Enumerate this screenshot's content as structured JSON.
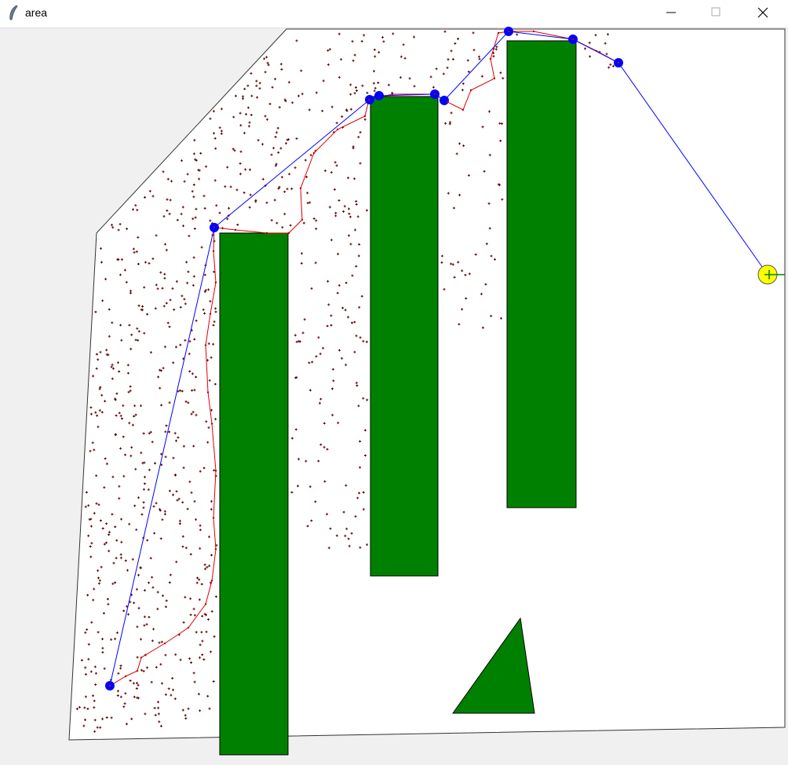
{
  "window": {
    "title": "area"
  }
}
